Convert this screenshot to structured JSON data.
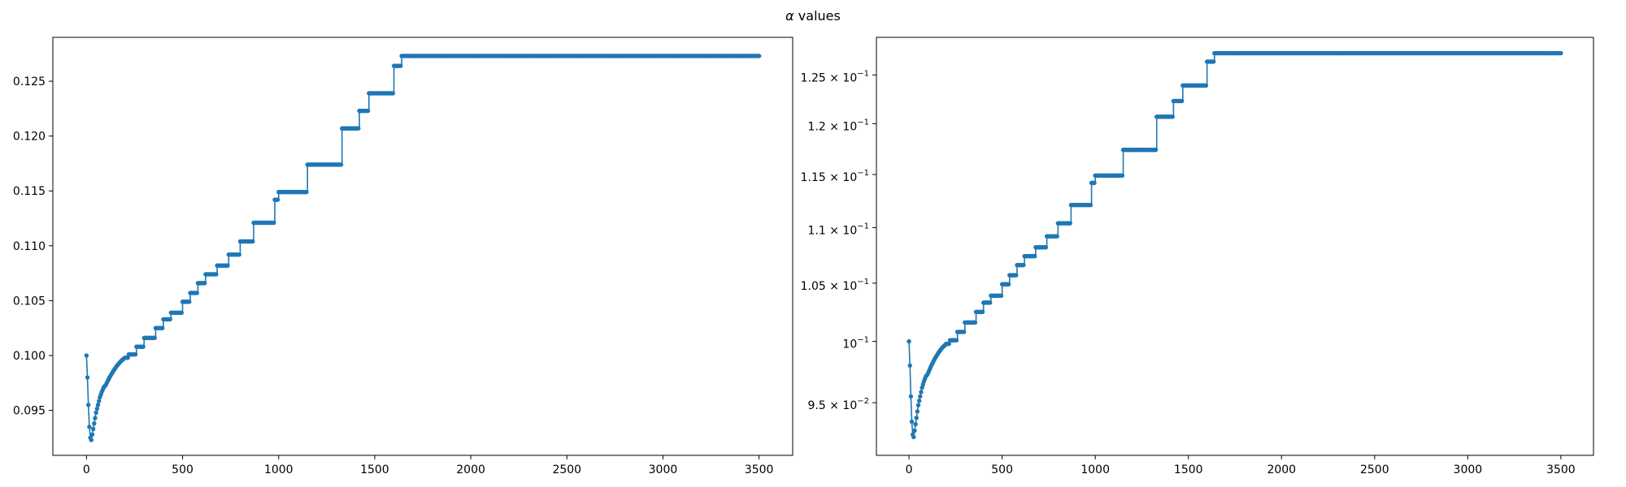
{
  "figure": {
    "title": "α values",
    "title_symbol": "α",
    "title_rest": " values"
  },
  "chart_data": [
    {
      "type": "line",
      "marker": "dot",
      "color": "#1f77b4",
      "yscale": "linear",
      "xlim": [
        -175,
        3675
      ],
      "ylim": [
        0.0909,
        0.129
      ],
      "grid": false,
      "xticks": [
        0,
        500,
        1000,
        1500,
        2000,
        2500,
        3000,
        3500
      ],
      "xtick_labels": [
        "0",
        "500",
        "1000",
        "1500",
        "2000",
        "2500",
        "3000",
        "3500"
      ],
      "yticks": [
        0.095,
        0.1,
        0.105,
        0.11,
        0.115,
        0.12,
        0.125
      ],
      "ytick_labels": [
        "0.095",
        "0.100",
        "0.105",
        "0.110",
        "0.115",
        "0.120",
        "0.125"
      ],
      "series": [
        {
          "x": [
            0,
            5,
            10,
            15,
            20,
            25,
            30,
            40,
            50,
            60,
            70,
            80,
            90,
            100,
            120,
            140,
            160,
            180,
            200,
            220,
            260,
            300,
            360,
            400,
            440,
            500,
            540,
            580,
            620,
            680,
            740,
            800,
            870,
            980,
            1000,
            1080,
            1150,
            1200,
            1300,
            1330,
            1420,
            1470,
            1580,
            1600,
            1640,
            2000,
            2500,
            3000,
            3500
          ],
          "y": [
            0.1,
            0.098,
            0.0955,
            0.0935,
            0.0925,
            0.0923,
            0.0928,
            0.0938,
            0.0948,
            0.0955,
            0.0962,
            0.0967,
            0.0971,
            0.0973,
            0.098,
            0.0986,
            0.0991,
            0.0995,
            0.0998,
            0.1001,
            0.1008,
            0.1016,
            0.1025,
            0.1033,
            0.1039,
            0.1049,
            0.1057,
            0.1066,
            0.1074,
            0.1082,
            0.1092,
            0.1104,
            0.1121,
            0.1142,
            0.1149,
            0.1149,
            0.1174,
            0.1174,
            0.1174,
            0.1207,
            0.1223,
            0.1239,
            0.1239,
            0.1264,
            0.1273,
            0.1273,
            0.1273,
            0.1273,
            0.1273
          ]
        }
      ]
    },
    {
      "type": "line",
      "marker": "dot",
      "color": "#1f77b4",
      "yscale": "log",
      "xlim": [
        -175,
        3675
      ],
      "ylim": [
        0.0909,
        0.129
      ],
      "grid": false,
      "xticks": [
        0,
        500,
        1000,
        1500,
        2000,
        2500,
        3000,
        3500
      ],
      "xtick_labels": [
        "0",
        "500",
        "1000",
        "1500",
        "2000",
        "2500",
        "3000",
        "3500"
      ],
      "yticks": [
        0.095,
        0.1,
        0.105,
        0.11,
        0.115,
        0.12,
        0.125
      ],
      "ytick_labels": [
        {
          "mantissa": "9.5",
          "exponent": "−2"
        },
        {
          "mantissa": "",
          "exponent": "−1"
        },
        {
          "mantissa": "1.05",
          "exponent": "−1"
        },
        {
          "mantissa": "1.1",
          "exponent": "−1"
        },
        {
          "mantissa": "1.15",
          "exponent": "−1"
        },
        {
          "mantissa": "1.2",
          "exponent": "−1"
        },
        {
          "mantissa": "1.25",
          "exponent": "−1"
        }
      ],
      "series": [
        {
          "x": [
            0,
            5,
            10,
            15,
            20,
            25,
            30,
            40,
            50,
            60,
            70,
            80,
            90,
            100,
            120,
            140,
            160,
            180,
            200,
            220,
            260,
            300,
            360,
            400,
            440,
            500,
            540,
            580,
            620,
            680,
            740,
            800,
            870,
            980,
            1000,
            1080,
            1150,
            1200,
            1300,
            1330,
            1420,
            1470,
            1580,
            1600,
            1640,
            2000,
            2500,
            3000,
            3500
          ],
          "y": [
            0.1,
            0.098,
            0.0955,
            0.0935,
            0.0925,
            0.0923,
            0.0928,
            0.0938,
            0.0948,
            0.0955,
            0.0962,
            0.0967,
            0.0971,
            0.0973,
            0.098,
            0.0986,
            0.0991,
            0.0995,
            0.0998,
            0.1001,
            0.1008,
            0.1016,
            0.1025,
            0.1033,
            0.1039,
            0.1049,
            0.1057,
            0.1066,
            0.1074,
            0.1082,
            0.1092,
            0.1104,
            0.1121,
            0.1142,
            0.1149,
            0.1149,
            0.1174,
            0.1174,
            0.1174,
            0.1207,
            0.1223,
            0.1239,
            0.1239,
            0.1264,
            0.1273,
            0.1273,
            0.1273,
            0.1273,
            0.1273
          ]
        }
      ]
    }
  ]
}
